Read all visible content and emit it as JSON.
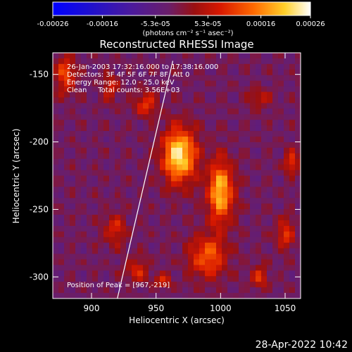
{
  "colorbar": {
    "ticks": [
      "-0.00026",
      "-0.00016",
      "-5.3e-05",
      "5.3e-05",
      "0.00016",
      "0.00026"
    ],
    "unit_label": "(photons cm⁻² s⁻¹ asec⁻²)"
  },
  "chart_data": {
    "type": "heatmap",
    "title": "Reconstructed RHESSI Image",
    "xlabel": "Heliocentric X (arcsec)",
    "ylabel": "Heliocentric Y (arcsec)",
    "xlim": [
      870,
      1062
    ],
    "ylim": [
      -316,
      -134
    ],
    "xticks": [
      900,
      950,
      1000,
      1050
    ],
    "yticks": [
      -150,
      -200,
      -250,
      -300
    ],
    "colorbar_range": [
      -0.00026,
      0.00026
    ],
    "colormap": "blue-purple-red-orange-yellow-white",
    "annotations": [
      "26-Jan-2003 17:32:16.000 to 17:38:16.000",
      "Detectors: 3F 4F 5F 6F 7F 8F, Att 0",
      "Energy Range: 12.0 - 25.0 keV",
      "Clean     Total counts: 3.56E+03",
      "Position of Peak = [967,-219]"
    ],
    "limb_line": [
      {
        "x": 920,
        "y": -316
      },
      {
        "x": 963,
        "y": -140
      }
    ],
    "peak": {
      "x": 967,
      "y": -219
    },
    "emission_sources": [
      {
        "x": 968,
        "y": -210,
        "amp": 0.00026,
        "sx": 9,
        "sy": 14
      },
      {
        "x": 1000,
        "y": -237,
        "amp": 0.00022,
        "sx": 7,
        "sy": 16
      },
      {
        "x": 990,
        "y": -285,
        "amp": 0.00015,
        "sx": 10,
        "sy": 11
      },
      {
        "x": 880,
        "y": -150,
        "amp": 0.00014,
        "sx": 5,
        "sy": 10
      },
      {
        "x": 915,
        "y": -160,
        "amp": 0.0001,
        "sx": 4,
        "sy": 7
      },
      {
        "x": 942,
        "y": -172,
        "amp": 0.00012,
        "sx": 6,
        "sy": 6
      },
      {
        "x": 1030,
        "y": -168,
        "amp": 8e-05,
        "sx": 6,
        "sy": 5
      },
      {
        "x": 1055,
        "y": -215,
        "amp": 0.00012,
        "sx": 4,
        "sy": 6
      },
      {
        "x": 1050,
        "y": -268,
        "amp": 0.00011,
        "sx": 5,
        "sy": 8
      },
      {
        "x": 918,
        "y": -265,
        "amp": 0.0001,
        "sx": 6,
        "sy": 8
      },
      {
        "x": 935,
        "y": -295,
        "amp": 0.0001,
        "sx": 6,
        "sy": 6
      },
      {
        "x": 955,
        "y": -303,
        "amp": 9e-05,
        "sx": 5,
        "sy": 4
      },
      {
        "x": 1030,
        "y": -300,
        "amp": 0.0001,
        "sx": 5,
        "sy": 6
      }
    ]
  },
  "footer": {
    "timestamp": "28-Apr-2022 10:42"
  }
}
